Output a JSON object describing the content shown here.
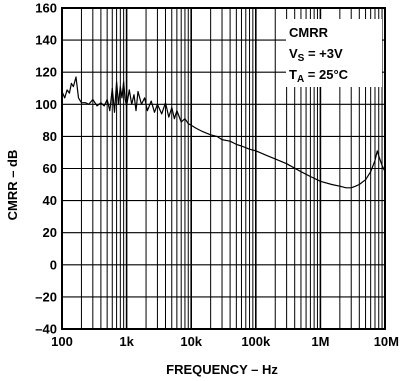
{
  "chart_data": {
    "type": "line",
    "xscale": "log",
    "xlim": [
      100,
      10000000
    ],
    "ylim": [
      -40,
      160
    ],
    "xlabel": "FREQUENCY – Hz",
    "ylabel": "CMRR – dB",
    "grid": true,
    "x_ticks": [
      {
        "value": 100,
        "label": "100"
      },
      {
        "value": 1000,
        "label": "1k"
      },
      {
        "value": 10000,
        "label": "10k"
      },
      {
        "value": 100000,
        "label": "100k"
      },
      {
        "value": 1000000,
        "label": "1M"
      },
      {
        "value": 10000000,
        "label": "10M"
      }
    ],
    "y_ticks": [
      {
        "value": 160,
        "label": "160"
      },
      {
        "value": 140,
        "label": "140"
      },
      {
        "value": 120,
        "label": "120"
      },
      {
        "value": 100,
        "label": "100"
      },
      {
        "value": 80,
        "label": "80"
      },
      {
        "value": 60,
        "label": "60"
      },
      {
        "value": 40,
        "label": "40"
      },
      {
        "value": 20,
        "label": "20"
      },
      {
        "value": 0,
        "label": "0"
      },
      {
        "value": -20,
        "label": "–20"
      },
      {
        "value": -40,
        "label": "–40"
      }
    ],
    "annotation": {
      "title": "CMRR",
      "line2_main": "V",
      "line2_sub": "S",
      "line2_rest": " = +3V",
      "line3_main": "T",
      "line3_sub": "A",
      "line3_rest": " = 25°C"
    },
    "series": [
      {
        "x": [
          100,
          110,
          120,
          130,
          140,
          150,
          165,
          180,
          200,
          230,
          260,
          300,
          350,
          400,
          450,
          500,
          550,
          600,
          650,
          700,
          750,
          800,
          850,
          900,
          950,
          1000,
          1100,
          1200,
          1300,
          1400,
          1500,
          1700,
          1900,
          2100,
          2400,
          2700,
          3000,
          3500,
          4000,
          4500,
          5000,
          5500,
          6000,
          7000,
          8000,
          9000,
          10000,
          12000,
          15000,
          20000,
          25000,
          30000,
          40000,
          50000,
          60000,
          80000,
          100000,
          150000,
          200000,
          300000,
          500000,
          700000,
          1000000,
          1500000,
          2000000,
          2500000,
          3000000,
          3500000,
          4000000,
          5000000,
          6000000,
          7000000,
          7600000,
          8000000,
          9000000,
          10000000
        ],
        "y": [
          108,
          104,
          109,
          107,
          113,
          111,
          117,
          104,
          101,
          101,
          100,
          103,
          99,
          101,
          99,
          103,
          96,
          110,
          95,
          114,
          100,
          111,
          104,
          114,
          103,
          99,
          109,
          100,
          106,
          96,
          108,
          100,
          104,
          96,
          102,
          95,
          100,
          94,
          101,
          92,
          98,
          91,
          96,
          89,
          91,
          88,
          87,
          85,
          83,
          81,
          80,
          78,
          77,
          75,
          74,
          72,
          71,
          68,
          66,
          63,
          58,
          55,
          52,
          50,
          49,
          48,
          48,
          49,
          50,
          53,
          58,
          65,
          71,
          68,
          62,
          58
        ]
      }
    ]
  }
}
